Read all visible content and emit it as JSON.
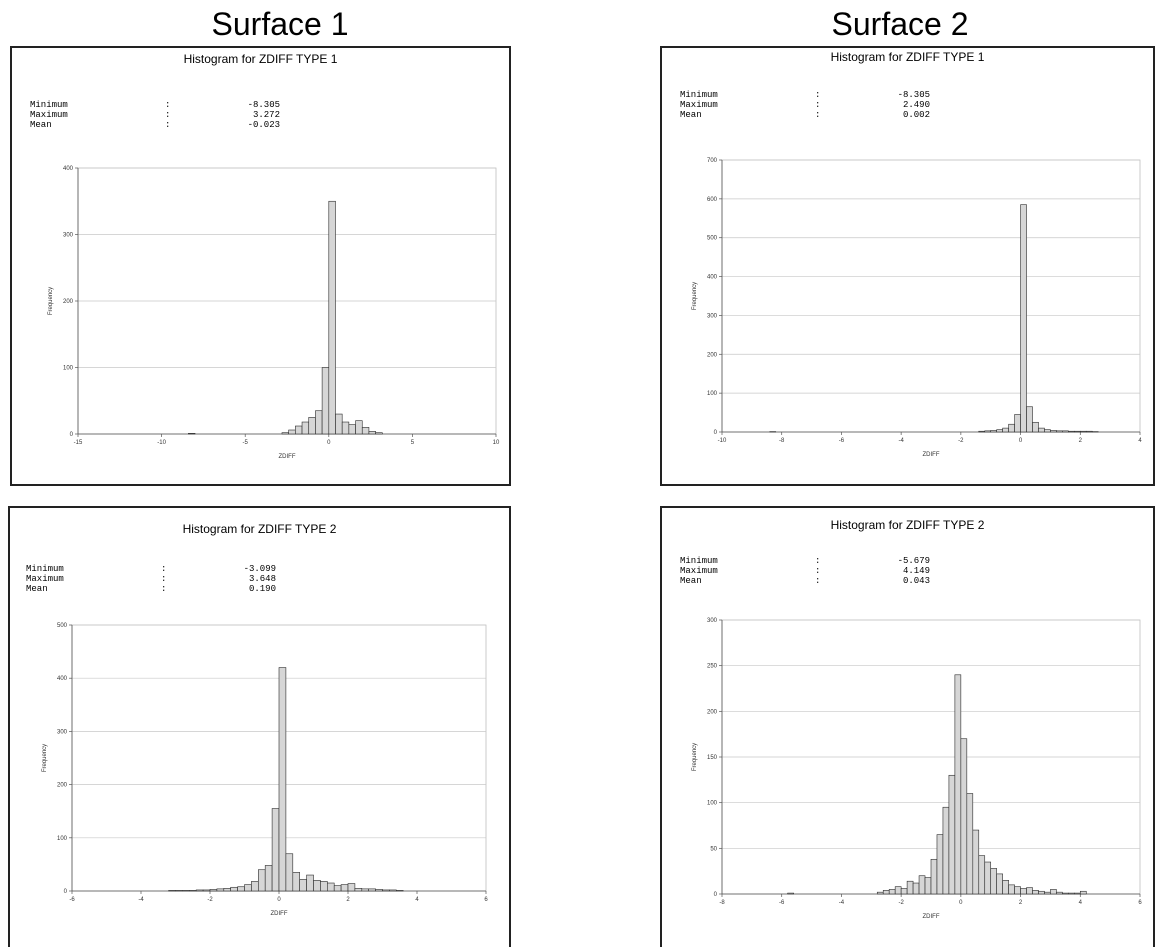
{
  "surface_titles": [
    "Surface 1",
    "Surface 2"
  ],
  "chart_data": [
    {
      "type": "bar",
      "title": "Histogram for ZDIFF TYPE 1",
      "xlabel": "ZDIFF",
      "ylabel": "Frequency",
      "stats": [
        {
          "label": "Minimum",
          "colon": ":",
          "value": "-8.305"
        },
        {
          "label": "Maximum",
          "colon": ":",
          "value": "3.272"
        },
        {
          "label": "Mean",
          "colon": ":",
          "value": "-0.023"
        }
      ],
      "xlim": [
        -15,
        10
      ],
      "ylim": [
        0,
        400
      ],
      "xticks": [
        -15,
        -10,
        -5,
        0,
        5,
        10
      ],
      "xtick_labels": [
        "-15",
        "-10",
        "-5",
        "0",
        "5",
        "10"
      ],
      "yticks": [
        0,
        100,
        200,
        300,
        400
      ],
      "ytick_labels": [
        "0",
        "100",
        "200",
        "300",
        "400"
      ],
      "bin_width": 0.4,
      "bin_starts": [
        -8.4,
        -2.8,
        -2.4,
        -2.0,
        -1.6,
        -1.2,
        -0.8,
        -0.4,
        0.0,
        0.4,
        0.8,
        1.2,
        1.6,
        2.0,
        2.4,
        2.8
      ],
      "values": [
        1,
        2,
        6,
        12,
        18,
        25,
        35,
        100,
        350,
        30,
        18,
        14,
        20,
        10,
        4,
        2
      ]
    },
    {
      "type": "bar",
      "title": "Histogram for ZDIFF TYPE 1",
      "xlabel": "ZDIFF",
      "ylabel": "Frequency",
      "stats": [
        {
          "label": "Minimum",
          "colon": ":",
          "value": "-8.305"
        },
        {
          "label": "Maximum",
          "colon": ":",
          "value": "2.490"
        },
        {
          "label": "Mean",
          "colon": ":",
          "value": "0.002"
        }
      ],
      "xlim": [
        -10,
        4
      ],
      "ylim": [
        0,
        700
      ],
      "xticks": [
        -10,
        -8,
        -6,
        -4,
        -2,
        0,
        2,
        4
      ],
      "xtick_labels": [
        "-10",
        "-8",
        "-6",
        "-4",
        "-2",
        "0",
        "2",
        "4"
      ],
      "yticks": [
        0,
        100,
        200,
        300,
        400,
        500,
        600,
        700
      ],
      "ytick_labels": [
        "0",
        "100",
        "200",
        "300",
        "400",
        "500",
        "600",
        "700"
      ],
      "bin_width": 0.2,
      "bin_starts": [
        -8.4,
        -1.4,
        -1.2,
        -1.0,
        -0.8,
        -0.6,
        -0.4,
        -0.2,
        0.0,
        0.2,
        0.4,
        0.6,
        0.8,
        1.0,
        1.2,
        1.4,
        1.6,
        1.8,
        2.0,
        2.2,
        2.4
      ],
      "values": [
        1,
        2,
        3,
        4,
        6,
        10,
        20,
        45,
        585,
        65,
        25,
        10,
        6,
        4,
        3,
        3,
        2,
        2,
        2,
        2,
        1
      ]
    },
    {
      "type": "bar",
      "title": "Histogram for ZDIFF TYPE 2",
      "xlabel": "ZDIFF",
      "ylabel": "Frequency",
      "stats": [
        {
          "label": "Minimum",
          "colon": ":",
          "value": "-3.099"
        },
        {
          "label": "Maximum",
          "colon": ":",
          "value": "3.648"
        },
        {
          "label": "Mean",
          "colon": ":",
          "value": "0.190"
        }
      ],
      "xlim": [
        -6,
        6
      ],
      "ylim": [
        0,
        500
      ],
      "xticks": [
        -6,
        -4,
        -2,
        0,
        2,
        4,
        6
      ],
      "xtick_labels": [
        "-6",
        "-4",
        "-2",
        "0",
        "2",
        "4",
        "6"
      ],
      "yticks": [
        0,
        100,
        200,
        300,
        400,
        500
      ],
      "ytick_labels": [
        "0",
        "100",
        "200",
        "300",
        "400",
        "500"
      ],
      "bin_width": 0.2,
      "bin_starts": [
        -3.2,
        -3.0,
        -2.8,
        -2.6,
        -2.4,
        -2.2,
        -2.0,
        -1.8,
        -1.6,
        -1.4,
        -1.2,
        -1.0,
        -0.8,
        -0.6,
        -0.4,
        -0.2,
        0.0,
        0.2,
        0.4,
        0.6,
        0.8,
        1.0,
        1.2,
        1.4,
        1.6,
        1.8,
        2.0,
        2.2,
        2.4,
        2.6,
        2.8,
        3.0,
        3.2,
        3.4
      ],
      "values": [
        1,
        1,
        1,
        1,
        2,
        2,
        3,
        4,
        5,
        7,
        8,
        12,
        18,
        40,
        48,
        155,
        420,
        70,
        35,
        22,
        30,
        20,
        18,
        15,
        10,
        12,
        14,
        5,
        4,
        4,
        3,
        2,
        2,
        1
      ]
    },
    {
      "type": "bar",
      "title": "Histogram for ZDIFF TYPE 2",
      "xlabel": "ZDIFF",
      "ylabel": "Frequency",
      "stats": [
        {
          "label": "Minimum",
          "colon": ":",
          "value": "-5.679"
        },
        {
          "label": "Maximum",
          "colon": ":",
          "value": "4.149"
        },
        {
          "label": "Mean",
          "colon": ":",
          "value": "0.043"
        }
      ],
      "xlim": [
        -8,
        6
      ],
      "ylim": [
        0,
        300
      ],
      "xticks": [
        -8,
        -6,
        -4,
        -2,
        0,
        2,
        4,
        6
      ],
      "xtick_labels": [
        "-8",
        "-6",
        "-4",
        "-2",
        "0",
        "2",
        "4",
        "6"
      ],
      "yticks": [
        0,
        50,
        100,
        150,
        200,
        250,
        300
      ],
      "ytick_labels": [
        "0",
        "50",
        "100",
        "150",
        "200",
        "250",
        "300"
      ],
      "bin_width": 0.2,
      "bin_starts": [
        -5.8,
        -2.8,
        -2.6,
        -2.4,
        -2.2,
        -2.0,
        -1.8,
        -1.6,
        -1.4,
        -1.2,
        -1.0,
        -0.8,
        -0.6,
        -0.4,
        -0.2,
        0.0,
        0.2,
        0.4,
        0.6,
        0.8,
        1.0,
        1.2,
        1.4,
        1.6,
        1.8,
        2.0,
        2.2,
        2.4,
        2.6,
        2.8,
        3.0,
        3.2,
        3.4,
        3.6,
        3.8,
        4.0
      ],
      "values": [
        1,
        2,
        4,
        5,
        8,
        6,
        14,
        12,
        20,
        18,
        38,
        65,
        95,
        130,
        240,
        170,
        110,
        70,
        42,
        35,
        28,
        22,
        15,
        10,
        8,
        6,
        7,
        4,
        3,
        2,
        5,
        2,
        1,
        1,
        1,
        3
      ]
    }
  ]
}
